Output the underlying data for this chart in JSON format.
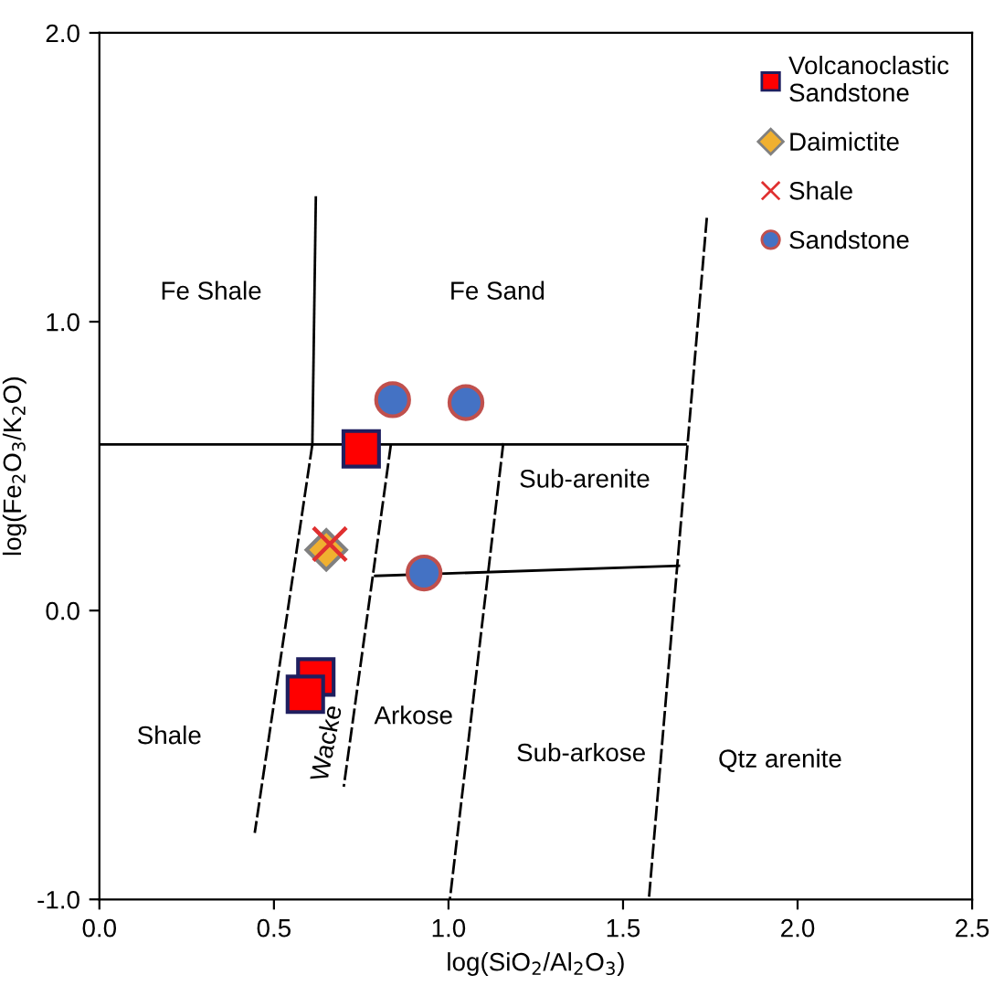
{
  "chart_data": {
    "type": "scatter",
    "xlabel": "log(SiO$_{2}$/Al$_{2}$O$_{3}$)",
    "ylabel": "log(Fe$_{2}$O$_{3}$/K$_{2}$O)",
    "xlim": [
      0,
      2.5
    ],
    "ylim": [
      -1,
      2
    ],
    "xticks": [
      {
        "value": 0,
        "label": "0.0"
      },
      {
        "value": 0.5,
        "label": "0.5"
      },
      {
        "value": 1,
        "label": "1.0"
      },
      {
        "value": 1.5,
        "label": "1.5"
      },
      {
        "value": 2,
        "label": "2.0"
      },
      {
        "value": 2.5,
        "label": "2.5"
      }
    ],
    "yticks": [
      {
        "value": -1,
        "label": "-1.0"
      },
      {
        "value": 0,
        "label": "0.0"
      },
      {
        "value": 1,
        "label": "1.0"
      },
      {
        "value": 2,
        "label": "2.0"
      }
    ],
    "grid": false,
    "legend": "top right",
    "series": [
      {
        "type": "line",
        "color": "#000000",
        "line_style": "solid",
        "marker": "none",
        "x": [
          0,
          1.68
        ],
        "values": [
          0.575,
          0.575
        ]
      },
      {
        "type": "line",
        "color": "#000000",
        "line_style": "solid",
        "marker": "none",
        "x": [
          0.62,
          0.61
        ],
        "values": [
          1.43,
          0.575
        ]
      },
      {
        "type": "line",
        "color": "#000000",
        "line_style": "dashed",
        "marker": "none",
        "x": [
          0.61,
          0.445
        ],
        "values": [
          0.575,
          -0.77
        ]
      },
      {
        "type": "line",
        "color": "#000000",
        "line_style": "dashed",
        "marker": "none",
        "x": [
          0.835,
          0.7
        ],
        "values": [
          0.575,
          -0.61
        ]
      },
      {
        "type": "line",
        "color": "#000000",
        "line_style": "dashed",
        "marker": "none",
        "x": [
          1.157,
          1.004
        ],
        "values": [
          0.58,
          -1.0
        ]
      },
      {
        "type": "line",
        "color": "#000000",
        "line_style": "dashed",
        "marker": "none",
        "x": [
          1.74,
          1.574
        ],
        "values": [
          1.36,
          -1.0
        ]
      },
      {
        "type": "line",
        "color": "#000000",
        "line_style": "solid",
        "marker": "none",
        "x": [
          0.79,
          1.66
        ],
        "values": [
          0.12,
          0.155
        ]
      },
      {
        "name": "Volcanoclastic\nSandstone",
        "color": "#ff0000",
        "marker": "square",
        "x": [
          0.75,
          0.62,
          0.59
        ],
        "values": [
          0.56,
          -0.23,
          -0.29
        ]
      },
      {
        "name": "Daimictite",
        "color": "#f0b030",
        "marker": "diamond",
        "x": [
          0.65
        ],
        "values": [
          0.21
        ]
      },
      {
        "name": "Shale",
        "color": "#e03030",
        "marker": "cross",
        "x": [
          0.66
        ],
        "values": [
          0.23
        ]
      },
      {
        "name": "Sandstone",
        "color": "#4472c4",
        "marker": "circle",
        "x": [
          0.84,
          1.05,
          0.93
        ],
        "values": [
          0.73,
          0.72,
          0.13
        ]
      }
    ],
    "annotations": [
      "Fe Shale",
      "Fe Sand",
      "Sub-arenite",
      "Shale",
      "Wacke",
      "Arkose",
      "Sub-arkose",
      "Qtz arenite"
    ]
  }
}
